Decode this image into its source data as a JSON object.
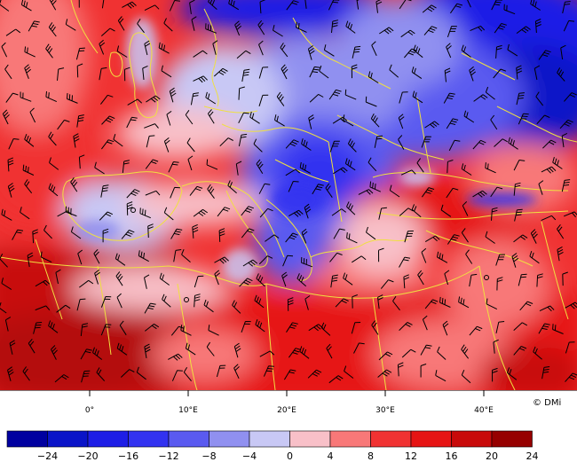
{
  "map": {
    "credit": "© DMi",
    "longitude_labels": [
      {
        "label": "0°",
        "lon": 0
      },
      {
        "label": "10°E",
        "lon": 10
      },
      {
        "label": "20°E",
        "lon": 20
      },
      {
        "label": "30°E",
        "lon": 30
      },
      {
        "label": "40°E",
        "lon": 40
      }
    ]
  },
  "legend": {
    "tick_labels": [
      "−24",
      "−20",
      "−16",
      "−12",
      "−8",
      "−4",
      "0",
      "4",
      "8",
      "12",
      "16",
      "20",
      "24"
    ],
    "colors": [
      "#0000a0",
      "#0a14c8",
      "#1e1ee6",
      "#3232f0",
      "#5a5af0",
      "#9090f0",
      "#c8c8f5",
      "#f8c0c8",
      "#f87878",
      "#f03232",
      "#e61414",
      "#c80a0a",
      "#960000"
    ]
  },
  "colors": {
    "borders": "#f0e040",
    "land_outline": "#f0e040",
    "wind_barbs": "#000000"
  }
}
